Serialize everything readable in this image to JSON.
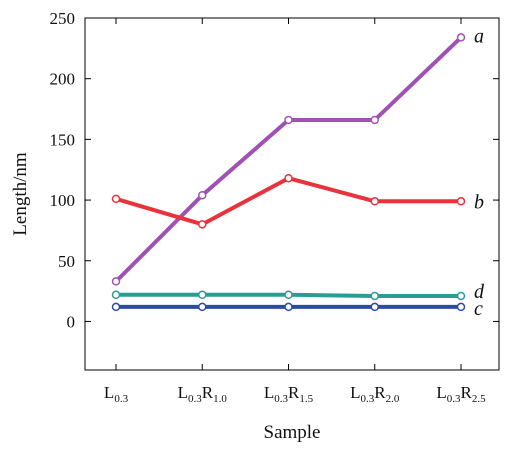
{
  "chart_data": {
    "type": "line",
    "title": "",
    "xlabel": "Sample",
    "ylabel": "Length/nm",
    "categories": [
      {
        "base": "L",
        "sub1": "0.3",
        "mid": "",
        "sub2": ""
      },
      {
        "base": "L",
        "sub1": "0.3",
        "mid": "R",
        "sub2": "1.0"
      },
      {
        "base": "L",
        "sub1": "0.3",
        "mid": "R",
        "sub2": "1.5"
      },
      {
        "base": "L",
        "sub1": "0.3",
        "mid": "R",
        "sub2": "2.0"
      },
      {
        "base": "L",
        "sub1": "0.3",
        "mid": "R",
        "sub2": "2.5"
      }
    ],
    "ylim": [
      -40,
      250
    ],
    "yticks": [
      "0",
      "50",
      "100",
      "150",
      "200",
      "250"
    ],
    "grid": false,
    "series": [
      {
        "name": "a",
        "color": "#a052b4",
        "marker_fill": "#ffffff",
        "values": [
          33,
          104,
          166,
          166,
          234
        ]
      },
      {
        "name": "b",
        "color": "#e8323c",
        "marker_fill": "#ffffff",
        "values": [
          101,
          80,
          118,
          99,
          99
        ]
      },
      {
        "name": "d",
        "color": "#2a9c94",
        "marker_fill": "#ffffff",
        "values": [
          22,
          22,
          22,
          21,
          21
        ]
      },
      {
        "name": "c",
        "color": "#2b4aa8",
        "marker_fill": "#ffffff",
        "values": [
          12,
          12,
          12,
          12,
          12
        ]
      }
    ]
  }
}
